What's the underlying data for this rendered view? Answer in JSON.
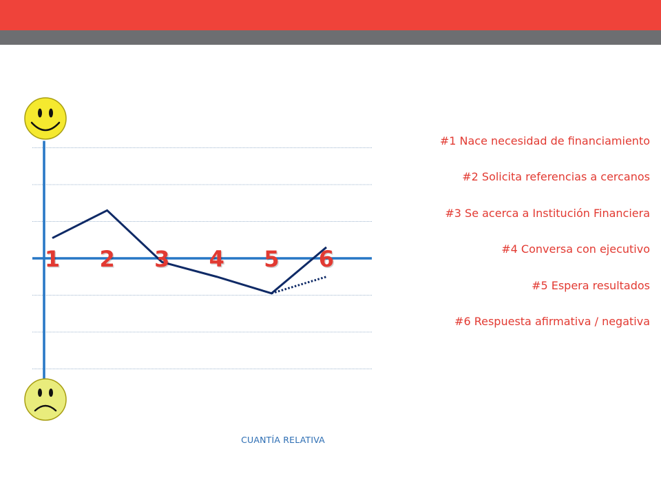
{
  "colors": {
    "header_red": "#ef433a",
    "header_gray": "#6d6e71",
    "axis_blue": "#2777c5",
    "line_navy": "#0f2a66",
    "step_red": "#e23a32",
    "legend_red": "#e23a32",
    "caption_blue": "#2c6db3",
    "gridline": "#9fb6cf",
    "smiley_fill": "#f5e92f",
    "smiley_edge": "#a89e12",
    "sad_fill": "#e9ec7c"
  },
  "icons": {
    "top": "happy-smiley-icon",
    "bottom": "sad-smiley-icon"
  },
  "legend": [
    "#1 Nace necesidad de financiamiento",
    "#2 Solicita referencias a cercanos",
    "#3 Se acerca a Institución Financiera",
    "#4 Conversa con ejecutivo",
    "#5 Espera resultados",
    "#6 Respuesta afirmativa / negativa"
  ],
  "caption": "CUANTÍA RELATIVA",
  "chart_data": {
    "type": "line",
    "title": "",
    "xlabel": "",
    "ylabel": "",
    "categories": [
      "1",
      "2",
      "3",
      "4",
      "5",
      "6"
    ],
    "x": [
      1,
      2,
      3,
      4,
      5,
      6
    ],
    "ylim": [
      -4,
      3
    ],
    "grid": true,
    "series": [
      {
        "style": "solid",
        "points": [
          [
            1,
            0.55
          ],
          [
            2,
            1.3
          ],
          [
            3,
            -0.1
          ],
          [
            4,
            -0.5
          ],
          [
            5,
            -0.95
          ],
          [
            6,
            0.3
          ]
        ]
      },
      {
        "style": "dotted",
        "points": [
          [
            5,
            -0.95
          ],
          [
            6,
            -0.5
          ]
        ]
      }
    ]
  }
}
